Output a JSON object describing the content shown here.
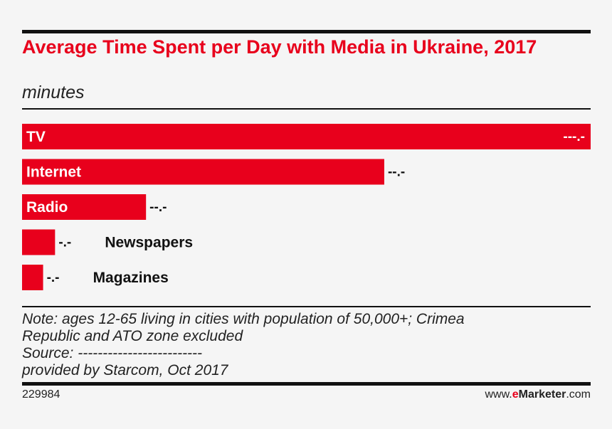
{
  "chart_data": {
    "type": "bar",
    "orientation": "horizontal",
    "title": "Average Time Spent per Day with Media in Ukraine, 2017",
    "subtitle": "minutes",
    "categories": [
      "TV",
      "Internet",
      "Radio",
      "Newspapers",
      "Magazines"
    ],
    "value_labels": [
      "---.-",
      "--.-",
      "--.-",
      "-.-",
      "-.-"
    ],
    "relative_values": [
      1.0,
      0.637,
      0.218,
      0.058,
      0.037
    ],
    "bar_color": "#e8001c",
    "grid": false,
    "legend": "none"
  },
  "notes": {
    "line1": "Note: ages 12-65 living in cities with population of 50,000+; Crimea",
    "line2": "Republic and ATO zone excluded",
    "line3": "Source: -------------------------",
    "line4": "provided by Starcom, Oct 2017"
  },
  "footer": {
    "id": "229984",
    "brand_prefix": "www.",
    "brand_e": "e",
    "brand_name": "Marketer",
    "brand_suffix": ".com"
  }
}
